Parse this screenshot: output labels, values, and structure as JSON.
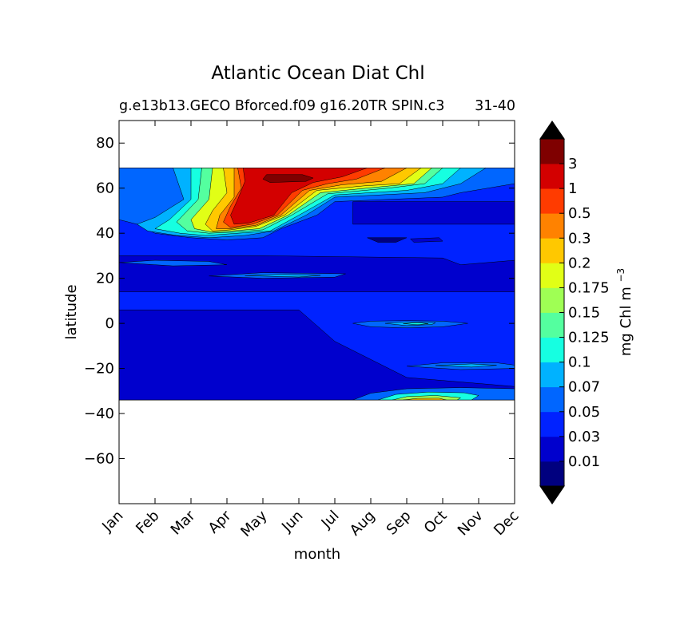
{
  "chart_data": {
    "type": "heatmap",
    "title": "Atlantic Ocean Diat Chl",
    "subtitle_left": "g.e13b13.GECO Bforced.f09 g16.20TR SPIN.c3",
    "subtitle_right": "31-40",
    "xlabel": "month",
    "ylabel": "latitude",
    "x_ticks": [
      "Jan",
      "Feb",
      "Mar",
      "Apr",
      "May",
      "Jun",
      "Jul",
      "Aug",
      "Sep",
      "Oct",
      "Nov",
      "Dec"
    ],
    "xlim": [
      0,
      11
    ],
    "ylim": [
      -80,
      90
    ],
    "y_ticks": [
      80,
      60,
      40,
      20,
      0,
      -20,
      -40,
      -60
    ],
    "data_lat_range": [
      -34,
      69
    ],
    "colorbar": {
      "label": "mg Chl m",
      "label_exponent": "−3",
      "levels": [
        "0.01",
        "0.03",
        "0.05",
        "0.07",
        "0.1",
        "0.125",
        "0.15",
        "0.175",
        "0.2",
        "0.3",
        "0.5",
        "1",
        "3"
      ],
      "colors": [
        "#00007f",
        "#0000cd",
        "#0022ff",
        "#0066ff",
        "#00b2ff",
        "#16ffe1",
        "#54ff9f",
        "#9fff54",
        "#e1ff16",
        "#ffc800",
        "#ff8200",
        "#ff3b00",
        "#d30000",
        "#7f0000"
      ],
      "extend": "both"
    },
    "regions": [
      {
        "level": 2,
        "lon": [
          [
            0,
            64
          ],
          [
            11,
            64
          ],
          [
            11,
            -34
          ],
          [
            0,
            -34
          ]
        ]
      },
      {
        "level": 1,
        "lon": [
          [
            0,
            6
          ],
          [
            5,
            6
          ],
          [
            6,
            -8
          ],
          [
            8,
            -24
          ],
          [
            11,
            -28
          ],
          [
            11,
            -34
          ],
          [
            0,
            -34
          ]
        ]
      },
      {
        "level": 1,
        "lon": [
          [
            0,
            30
          ],
          [
            4,
            30
          ],
          [
            9,
            29
          ],
          [
            9.5,
            26
          ],
          [
            11,
            28
          ],
          [
            11,
            14
          ],
          [
            0,
            14
          ]
        ]
      },
      {
        "level": 1,
        "lon": [
          [
            6.5,
            54
          ],
          [
            11,
            54
          ],
          [
            11,
            44
          ],
          [
            6.5,
            44
          ]
        ]
      },
      {
        "level": 3,
        "lon": [
          [
            0,
            69
          ],
          [
            11,
            69
          ],
          [
            11,
            62
          ],
          [
            9.5,
            58
          ],
          [
            9,
            56
          ],
          [
            6,
            54
          ],
          [
            5.5,
            48
          ],
          [
            4.5,
            42
          ],
          [
            4,
            38
          ],
          [
            3,
            37
          ],
          [
            2,
            38
          ],
          [
            1,
            40
          ],
          [
            0.5,
            44
          ],
          [
            0,
            46
          ]
        ]
      },
      {
        "level": 4,
        "lon": [
          [
            1.5,
            69
          ],
          [
            10.2,
            69
          ],
          [
            9.5,
            62
          ],
          [
            8.5,
            58
          ],
          [
            6,
            56
          ],
          [
            5.2,
            48
          ],
          [
            4.3,
            41
          ],
          [
            3.5,
            39
          ],
          [
            2.5,
            38
          ],
          [
            1.6,
            39
          ],
          [
            0.8,
            41
          ],
          [
            0.5,
            44
          ],
          [
            1,
            47
          ],
          [
            1.8,
            55
          ]
        ]
      },
      {
        "level": 5,
        "lon": [
          [
            2,
            69
          ],
          [
            9.5,
            69
          ],
          [
            9,
            62
          ],
          [
            8,
            59
          ],
          [
            6,
            57
          ],
          [
            5,
            48
          ],
          [
            4.2,
            41
          ],
          [
            3.3,
            40
          ],
          [
            2.4,
            39
          ],
          [
            1.7,
            40
          ],
          [
            1,
            42
          ],
          [
            1.4,
            46
          ],
          [
            2,
            55
          ]
        ]
      },
      {
        "level": 6,
        "lon": [
          [
            2.3,
            69
          ],
          [
            9,
            69
          ],
          [
            8.5,
            62
          ],
          [
            7.5,
            60
          ],
          [
            5.8,
            57.5
          ],
          [
            4.8,
            48
          ],
          [
            4,
            41.5
          ],
          [
            3.2,
            40.5
          ],
          [
            2.5,
            40
          ],
          [
            1.9,
            41
          ],
          [
            1.6,
            45
          ],
          [
            2.2,
            55
          ]
        ]
      },
      {
        "level": 8,
        "lon": [
          [
            2.6,
            69
          ],
          [
            8.7,
            69
          ],
          [
            8.2,
            62
          ],
          [
            7.2,
            60.5
          ],
          [
            5.6,
            58
          ],
          [
            4.7,
            48
          ],
          [
            3.9,
            42
          ],
          [
            3.1,
            41
          ],
          [
            2.6,
            40.5
          ],
          [
            2.1,
            42
          ],
          [
            2,
            46
          ],
          [
            2.5,
            55
          ]
        ]
      },
      {
        "level": 9,
        "lon": [
          [
            2.9,
            69
          ],
          [
            8.4,
            69
          ],
          [
            7.8,
            62
          ],
          [
            6.8,
            61
          ],
          [
            5.5,
            59
          ],
          [
            4.6,
            48
          ],
          [
            3.8,
            43
          ],
          [
            3.1,
            41.5
          ],
          [
            2.6,
            41
          ],
          [
            2.4,
            44
          ],
          [
            2.6,
            50
          ],
          [
            3,
            58
          ]
        ]
      },
      {
        "level": 10,
        "lon": [
          [
            3.2,
            69
          ],
          [
            8,
            69
          ],
          [
            7.3,
            63
          ],
          [
            6.2,
            61.5
          ],
          [
            5.3,
            59
          ],
          [
            4.5,
            48
          ],
          [
            3.8,
            43.5
          ],
          [
            3.1,
            42
          ],
          [
            2.7,
            42
          ],
          [
            2.8,
            48
          ],
          [
            3.2,
            56
          ]
        ]
      },
      {
        "level": 11,
        "lon": [
          [
            3.3,
            69
          ],
          [
            7.4,
            69
          ],
          [
            6.6,
            64
          ],
          [
            5.8,
            62
          ],
          [
            5.1,
            59
          ],
          [
            4.4,
            48
          ],
          [
            3.7,
            44
          ],
          [
            3.1,
            42.5
          ],
          [
            2.9,
            45
          ],
          [
            3.1,
            52
          ],
          [
            3.4,
            60
          ]
        ]
      },
      {
        "level": 12,
        "lon": [
          [
            3.45,
            69
          ],
          [
            6.9,
            69
          ],
          [
            6.2,
            65
          ],
          [
            5.4,
            62.5
          ],
          [
            4.8,
            58
          ],
          [
            4.3,
            48
          ],
          [
            3.6,
            44.5
          ],
          [
            3.2,
            44
          ],
          [
            3.1,
            48
          ],
          [
            3.3,
            55
          ],
          [
            3.5,
            63
          ]
        ]
      },
      {
        "level": 13,
        "lon": [
          [
            4.1,
            66
          ],
          [
            5.1,
            66
          ],
          [
            5.4,
            64.5
          ],
          [
            5.2,
            63
          ],
          [
            4.2,
            62.5
          ],
          [
            4,
            64
          ]
        ]
      },
      {
        "level": 1,
        "lon": [
          [
            8.1,
            37.5
          ],
          [
            8.2,
            36
          ],
          [
            9,
            36.5
          ],
          [
            8.9,
            38
          ]
        ]
      },
      {
        "level": 0,
        "lon": [
          [
            6.9,
            38
          ],
          [
            7.2,
            36
          ],
          [
            7.7,
            36
          ],
          [
            8,
            38
          ]
        ]
      },
      {
        "level": 3,
        "lon": [
          [
            6.5,
            0
          ],
          [
            7,
            -1.5
          ],
          [
            8,
            -2
          ],
          [
            9,
            -1.5
          ],
          [
            9.7,
            0
          ],
          [
            9,
            1
          ],
          [
            8,
            1.2
          ],
          [
            7,
            1
          ]
        ]
      },
      {
        "level": 4,
        "lon": [
          [
            7.4,
            0
          ],
          [
            8,
            -1
          ],
          [
            8.7,
            -0.5
          ],
          [
            8.8,
            0.3
          ],
          [
            8,
            0.7
          ]
        ]
      },
      {
        "level": 5,
        "lon": [
          [
            7.9,
            -0.1
          ],
          [
            8.3,
            -0.6
          ],
          [
            8.6,
            -0.1
          ],
          [
            8.3,
            0.3
          ]
        ]
      },
      {
        "level": 3,
        "lon": [
          [
            2.5,
            21
          ],
          [
            4,
            20
          ],
          [
            6,
            20.5
          ],
          [
            6.3,
            22
          ],
          [
            4,
            22.5
          ]
        ]
      },
      {
        "level": 4,
        "lon": [
          [
            3.5,
            21.2
          ],
          [
            5,
            20.6
          ],
          [
            5.6,
            21.3
          ],
          [
            4.5,
            21.8
          ]
        ]
      },
      {
        "level": 3,
        "lon": [
          [
            0,
            27
          ],
          [
            1.5,
            25.5
          ],
          [
            3,
            26
          ],
          [
            2.5,
            27.5
          ],
          [
            1,
            28
          ]
        ]
      },
      {
        "level": 3,
        "lon": [
          [
            6.5,
            -34
          ],
          [
            7,
            -31
          ],
          [
            8,
            -29
          ],
          [
            9.5,
            -28.5
          ],
          [
            11,
            -29
          ],
          [
            11,
            -34
          ]
        ]
      },
      {
        "level": 5,
        "lon": [
          [
            7.2,
            -34
          ],
          [
            7.7,
            -31.5
          ],
          [
            8.6,
            -30.5
          ],
          [
            9.6,
            -30.8
          ],
          [
            10,
            -32
          ],
          [
            9.8,
            -34
          ]
        ]
      },
      {
        "level": 7,
        "lon": [
          [
            7.6,
            -34
          ],
          [
            8,
            -32.5
          ],
          [
            8.8,
            -32
          ],
          [
            9.5,
            -33
          ],
          [
            9.4,
            -34
          ]
        ]
      },
      {
        "level": 9,
        "lon": [
          [
            7.9,
            -34
          ],
          [
            8.3,
            -33.3
          ],
          [
            8.9,
            -33.2
          ],
          [
            9.1,
            -34
          ]
        ]
      },
      {
        "level": 3,
        "lon": [
          [
            8,
            -19
          ],
          [
            9,
            -17.5
          ],
          [
            10.5,
            -17.5
          ],
          [
            11,
            -18.5
          ],
          [
            11,
            -20
          ],
          [
            9.5,
            -20.5
          ]
        ]
      },
      {
        "level": 4,
        "lon": [
          [
            8.8,
            -18.7
          ],
          [
            9.8,
            -18
          ],
          [
            10.5,
            -18.6
          ],
          [
            9.8,
            -19.4
          ]
        ]
      }
    ]
  }
}
